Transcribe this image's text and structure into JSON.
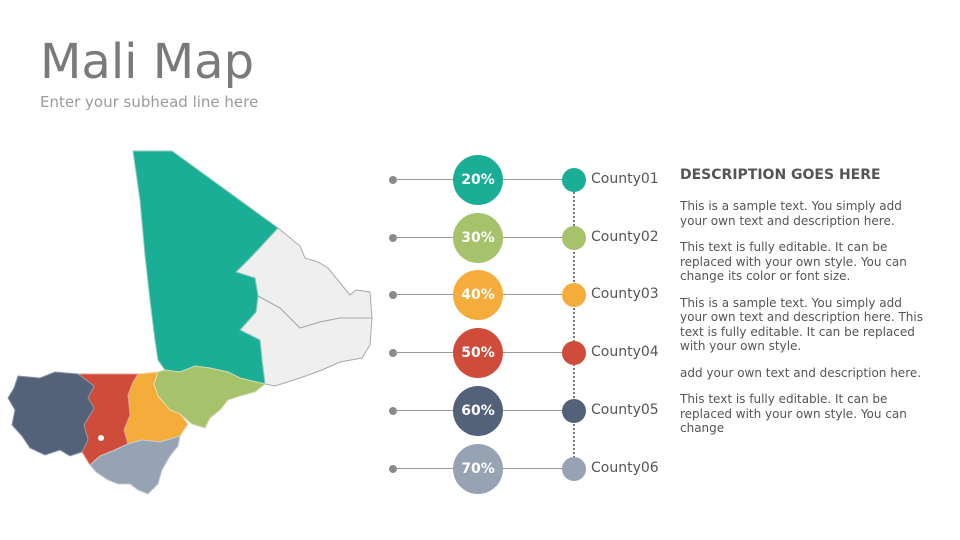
{
  "header": {
    "title": "Mali Map",
    "subtitle": "Enter your subhead line here"
  },
  "colors": {
    "teal": "#1aae96",
    "green": "#a6c26a",
    "orange": "#f4ac3a",
    "red": "#d04c3a",
    "slate": "#536278",
    "gray": "#97a3b3",
    "light": "#efefef"
  },
  "rows": [
    {
      "percent": "20%",
      "value": 20,
      "county": "County01",
      "color": "#1aae96"
    },
    {
      "percent": "30%",
      "value": 30,
      "county": "County02",
      "color": "#a6c26a"
    },
    {
      "percent": "40%",
      "value": 40,
      "county": "County03",
      "color": "#f4ac3a"
    },
    {
      "percent": "50%",
      "value": 50,
      "county": "County04",
      "color": "#d04c3a"
    },
    {
      "percent": "60%",
      "value": 60,
      "county": "County05",
      "color": "#536278"
    },
    {
      "percent": "70%",
      "value": 70,
      "county": "County06",
      "color": "#97a3b3"
    }
  ],
  "description": {
    "heading": "DESCRIPTION GOES HERE",
    "paragraphs": [
      "This is a sample text. You simply add your own text and description here.",
      "This text is fully editable. It can be replaced with your own style. You can change its color or font size.",
      "This is a sample text. You simply add your own text and description here. This text is fully editable. It can be replaced with your own style.",
      "add your own text and description here.",
      "This text is fully editable. It can be replaced with your own style. You can change"
    ]
  }
}
